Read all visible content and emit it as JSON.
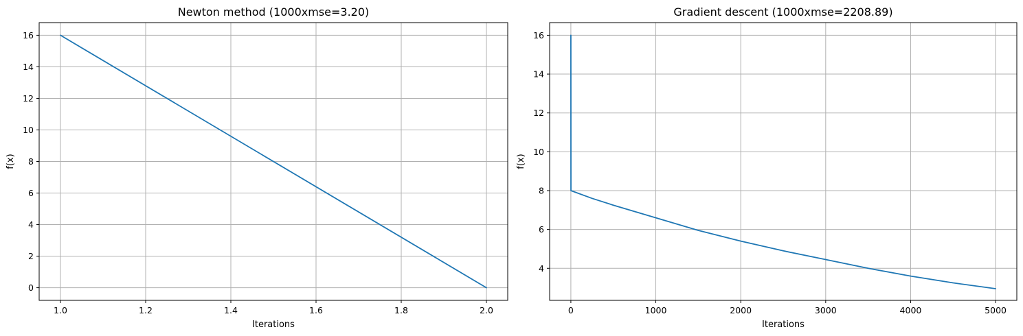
{
  "colors": {
    "series": "#1f77b4",
    "grid": "#b0b0b0",
    "axis": "#000000"
  },
  "chart_data": [
    {
      "type": "line",
      "title": "Newton method (1000xmse=3.20)",
      "xlabel": "Iterations",
      "ylabel": "f(x)",
      "grid": true,
      "xlim": [
        0.95,
        2.05
      ],
      "ylim": [
        -0.8,
        16.8
      ],
      "xticks": [
        1.0,
        1.2,
        1.4,
        1.6,
        1.8,
        2.0
      ],
      "xtick_labels": [
        "1.0",
        "1.2",
        "1.4",
        "1.6",
        "1.8",
        "2.0"
      ],
      "yticks": [
        0,
        2,
        4,
        6,
        8,
        10,
        12,
        14,
        16
      ],
      "ytick_labels": [
        "0",
        "2",
        "4",
        "6",
        "8",
        "10",
        "12",
        "14",
        "16"
      ],
      "series": [
        {
          "name": "f(x)",
          "x": [
            1,
            2
          ],
          "values": [
            16,
            0
          ]
        }
      ]
    },
    {
      "type": "line",
      "title": "Gradient descent (1000xmse=2208.89)",
      "xlabel": "Iterations",
      "ylabel": "f(x)",
      "grid": true,
      "xlim": [
        -250,
        5250
      ],
      "ylim": [
        2.35,
        16.65
      ],
      "xticks": [
        0,
        1000,
        2000,
        3000,
        4000,
        5000
      ],
      "xtick_labels": [
        "0",
        "1000",
        "2000",
        "3000",
        "4000",
        "5000"
      ],
      "yticks": [
        4,
        6,
        8,
        10,
        12,
        14,
        16
      ],
      "ytick_labels": [
        "4",
        "6",
        "8",
        "10",
        "12",
        "14",
        "16"
      ],
      "series": [
        {
          "name": "f(x)",
          "x": [
            0,
            1,
            250,
            500,
            1000,
            1500,
            2000,
            2500,
            3000,
            3500,
            4000,
            4500,
            5000
          ],
          "values": [
            16,
            8,
            7.6,
            7.25,
            6.6,
            5.95,
            5.4,
            4.9,
            4.45,
            4.0,
            3.6,
            3.25,
            2.95
          ]
        }
      ]
    }
  ]
}
